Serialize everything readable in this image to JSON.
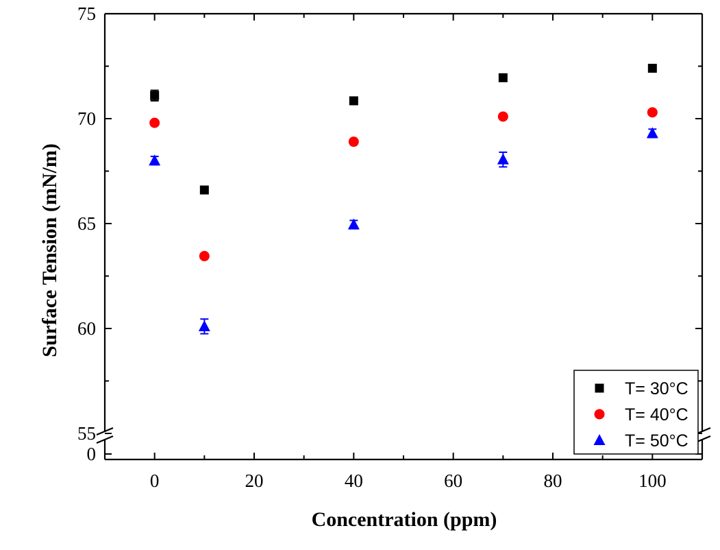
{
  "chart_data": {
    "type": "scatter",
    "xlabel": "Concentration (ppm)",
    "ylabel": "Surface Tension (mN/m)",
    "xlim": [
      -10,
      110
    ],
    "ylim": [
      55,
      75
    ],
    "y_axis_break": {
      "lower_segment_tick": "0",
      "note": "axis broken between 0 and 55"
    },
    "x_ticks": [
      "0",
      "20",
      "40",
      "60",
      "80",
      "100"
    ],
    "y_ticks": [
      "55",
      "60",
      "65",
      "70",
      "75"
    ],
    "legend_position": "bottom-right",
    "series": [
      {
        "name": "T= 30°C",
        "marker": "square",
        "color": "#000000",
        "points": [
          {
            "x": 0,
            "y": 71.1,
            "err": 0.25
          },
          {
            "x": 10,
            "y": 66.6,
            "err": 0.12
          },
          {
            "x": 40,
            "y": 70.85,
            "err": 0.12
          },
          {
            "x": 70,
            "y": 71.95,
            "err": 0.12
          },
          {
            "x": 100,
            "y": 72.4,
            "err": 0.12
          }
        ]
      },
      {
        "name": "T= 40°C",
        "marker": "circle",
        "color": "#ff0000",
        "points": [
          {
            "x": 0,
            "y": 69.8,
            "err": 0
          },
          {
            "x": 10,
            "y": 63.45,
            "err": 0
          },
          {
            "x": 40,
            "y": 68.9,
            "err": 0
          },
          {
            "x": 70,
            "y": 70.1,
            "err": 0
          },
          {
            "x": 100,
            "y": 70.3,
            "err": 0
          }
        ]
      },
      {
        "name": "T= 50°C",
        "marker": "triangle",
        "color": "#0000ff",
        "points": [
          {
            "x": 0,
            "y": 68.0,
            "err": 0.2
          },
          {
            "x": 10,
            "y": 60.1,
            "err": 0.35
          },
          {
            "x": 40,
            "y": 64.95,
            "err": 0.2
          },
          {
            "x": 70,
            "y": 68.05,
            "err": 0.35
          },
          {
            "x": 100,
            "y": 69.3,
            "err": 0.2
          }
        ]
      }
    ]
  }
}
